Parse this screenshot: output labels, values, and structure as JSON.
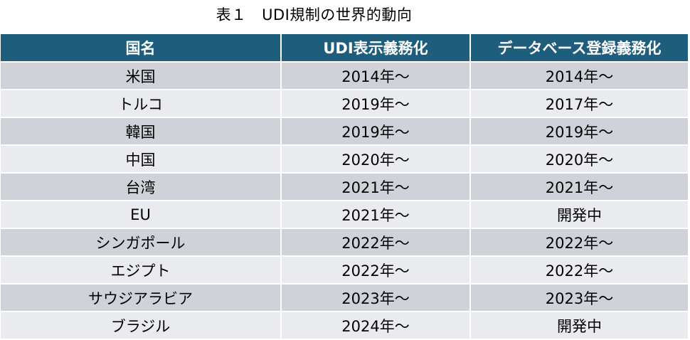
{
  "caption": "表１　UDI規制の世界的動向",
  "table": {
    "headers": [
      "国名",
      "UDI表示義務化",
      "データベース登録義務化"
    ],
    "rows": [
      [
        "米国",
        "2014年～",
        "2014年～"
      ],
      [
        "トルコ",
        "2019年～",
        "2017年～"
      ],
      [
        "韓国",
        "2019年～",
        "2019年～"
      ],
      [
        "中国",
        "2020年～",
        "2020年～"
      ],
      [
        "台湾",
        "2021年～",
        "2021年～"
      ],
      [
        "EU",
        "2021年～",
        "開発中"
      ],
      [
        "シンガポール",
        "2022年～",
        "2022年～"
      ],
      [
        "エジプト",
        "2022年～",
        "2022年～"
      ],
      [
        "サウジアラビア",
        "2023年～",
        "2023年～"
      ],
      [
        "ブラジル",
        "2024年～",
        "開発中"
      ]
    ],
    "colors": {
      "header_bg": "#1e5d7c",
      "row_odd_bg": "#cfd2d8",
      "row_even_bg": "#e9ebef"
    }
  }
}
